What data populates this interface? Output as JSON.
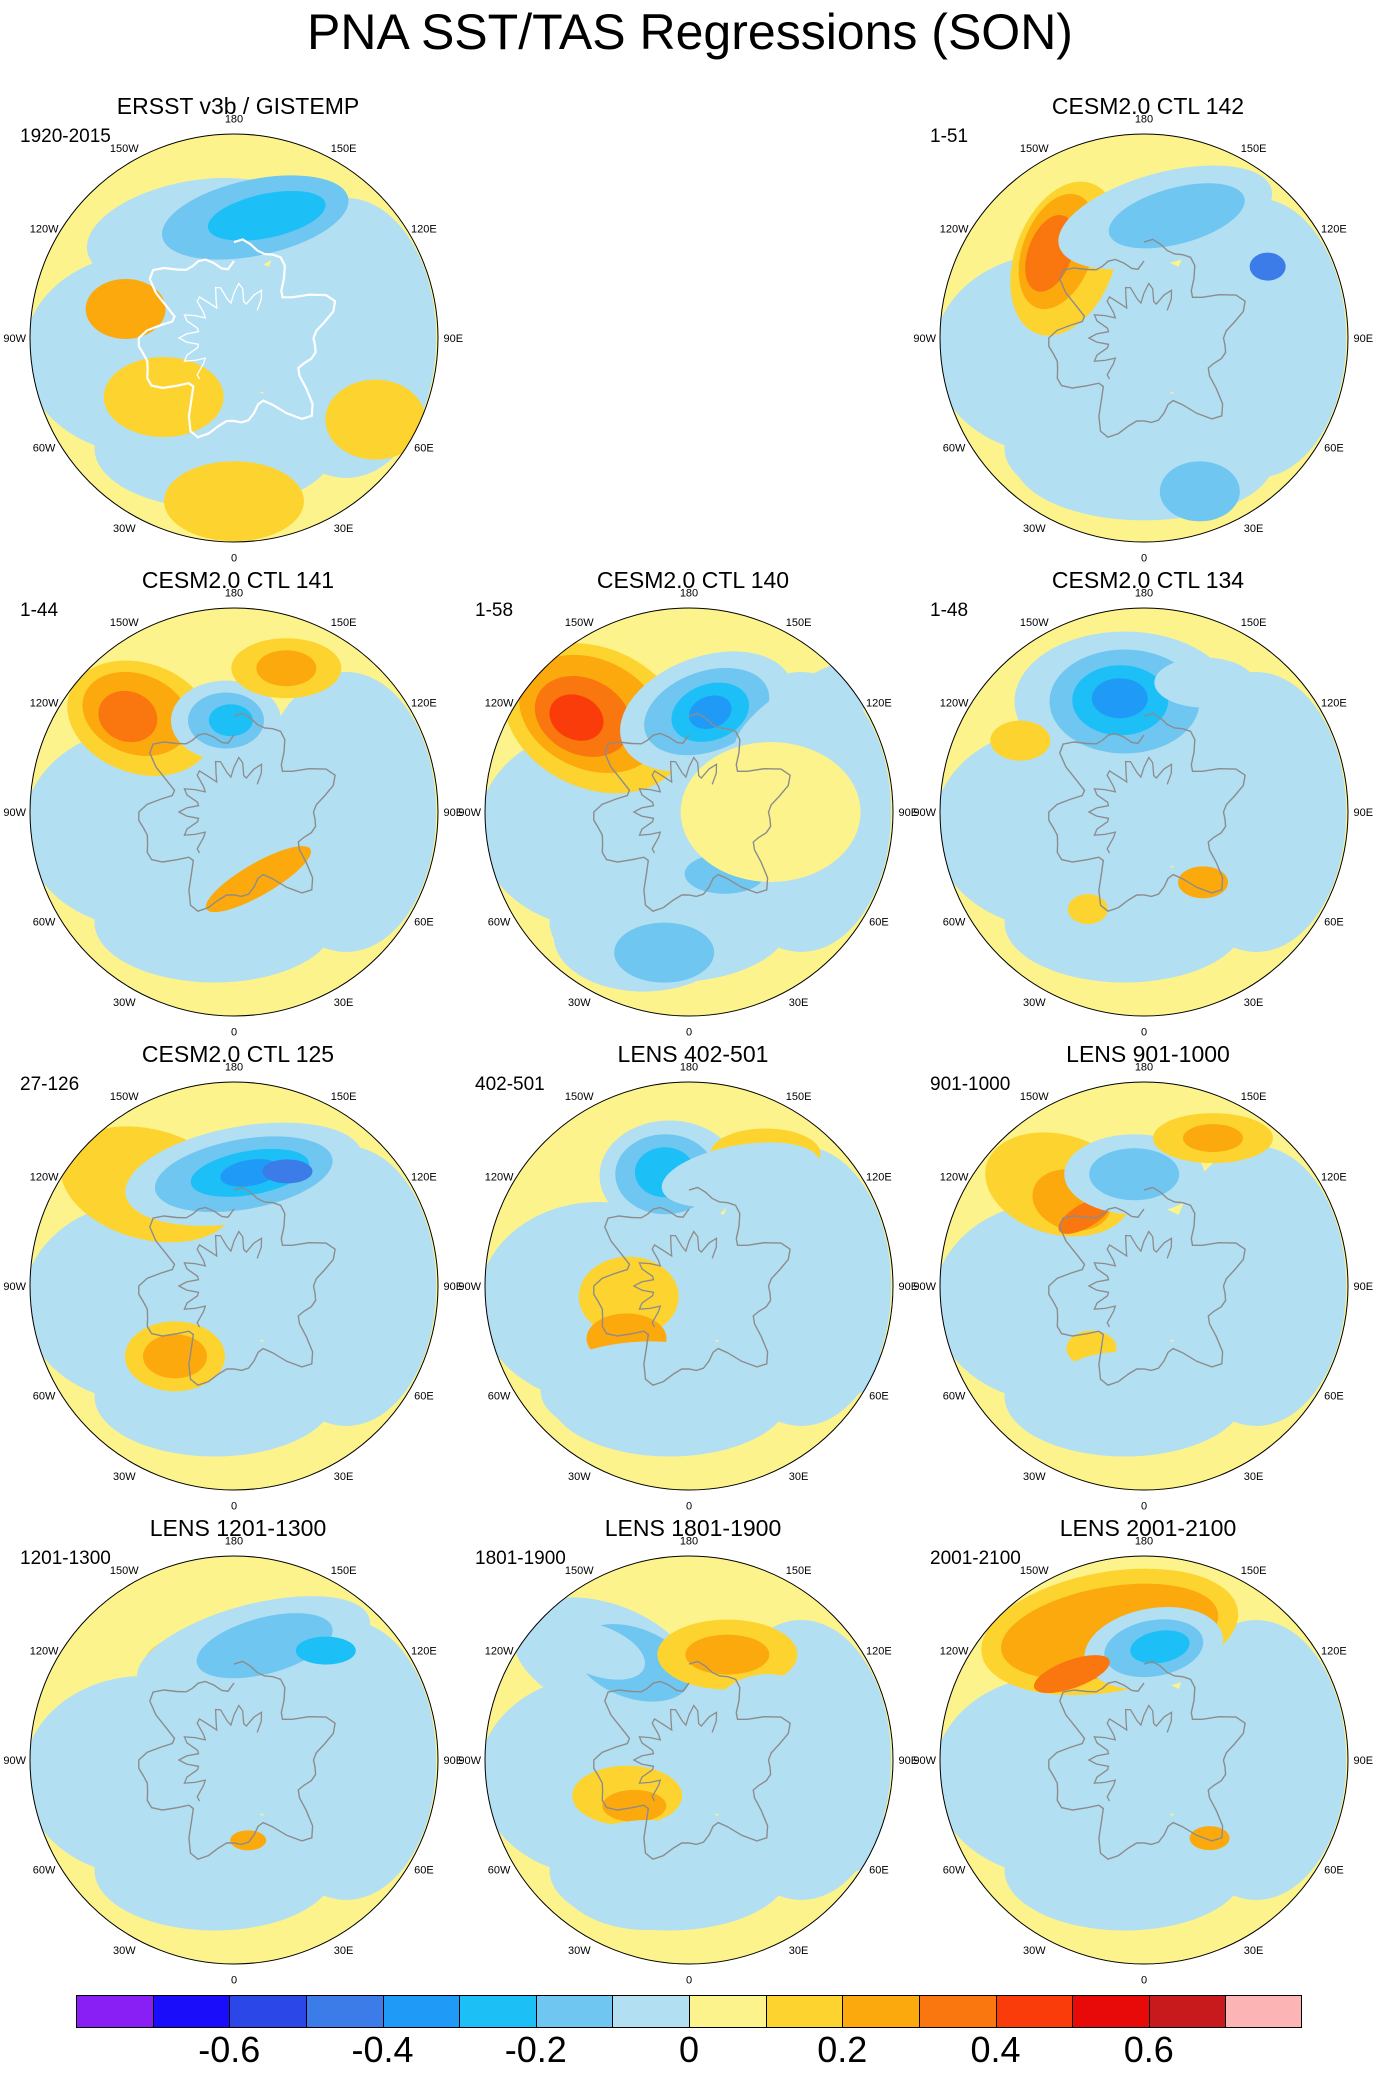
{
  "title": "PNA SST/TAS Regressions (SON)",
  "lon_labels": [
    "180",
    "150E",
    "120E",
    "90E",
    "60E",
    "30E",
    "0",
    "30W",
    "60W",
    "90W",
    "120W",
    "150W"
  ],
  "panels": [
    {
      "title": "ERSST v3b / GISTEMP",
      "period": "1920-2015",
      "pattern": "obs"
    },
    {
      "title": "CESM2.0 CTL 142",
      "period": "1-51",
      "pattern": "c142"
    },
    {
      "title": "CESM2.0 CTL 141",
      "period": "1-44",
      "pattern": "c141"
    },
    {
      "title": "CESM2.0 CTL 140",
      "period": "1-58",
      "pattern": "c140"
    },
    {
      "title": "CESM2.0 CTL 134",
      "period": "1-48",
      "pattern": "c134"
    },
    {
      "title": "CESM2.0 CTL 125",
      "period": "27-126",
      "pattern": "c125"
    },
    {
      "title": "LENS 402-501",
      "period": "402-501",
      "pattern": "l402"
    },
    {
      "title": "LENS 901-1000",
      "period": "901-1000",
      "pattern": "l901"
    },
    {
      "title": "LENS 1201-1300",
      "period": "1201-1300",
      "pattern": "l1201"
    },
    {
      "title": "LENS 1801-1900",
      "period": "1801-1900",
      "pattern": "l1801"
    },
    {
      "title": "LENS 2001-2100",
      "period": "2001-2100",
      "pattern": "l2001"
    }
  ],
  "colorbar": {
    "colors": [
      "#8a1ff5",
      "#1a0dfa",
      "#2c47e8",
      "#3c7ce8",
      "#1f9bf7",
      "#1cc0f7",
      "#6fc6f0",
      "#b3dff2",
      "#fdf38c",
      "#fdd42f",
      "#fca90d",
      "#fa760e",
      "#fa3b0a",
      "#e80909",
      "#c8191c",
      "#fcb4b4"
    ],
    "labels": [
      "-0.6",
      "-0.4",
      "-0.2",
      "0",
      "0.2",
      "0.4",
      "0.6"
    ]
  },
  "colors": {
    "neutral_blue": "#b3dff2",
    "neutral_yellow": "#fdf38c",
    "coast": "#ffffff"
  }
}
